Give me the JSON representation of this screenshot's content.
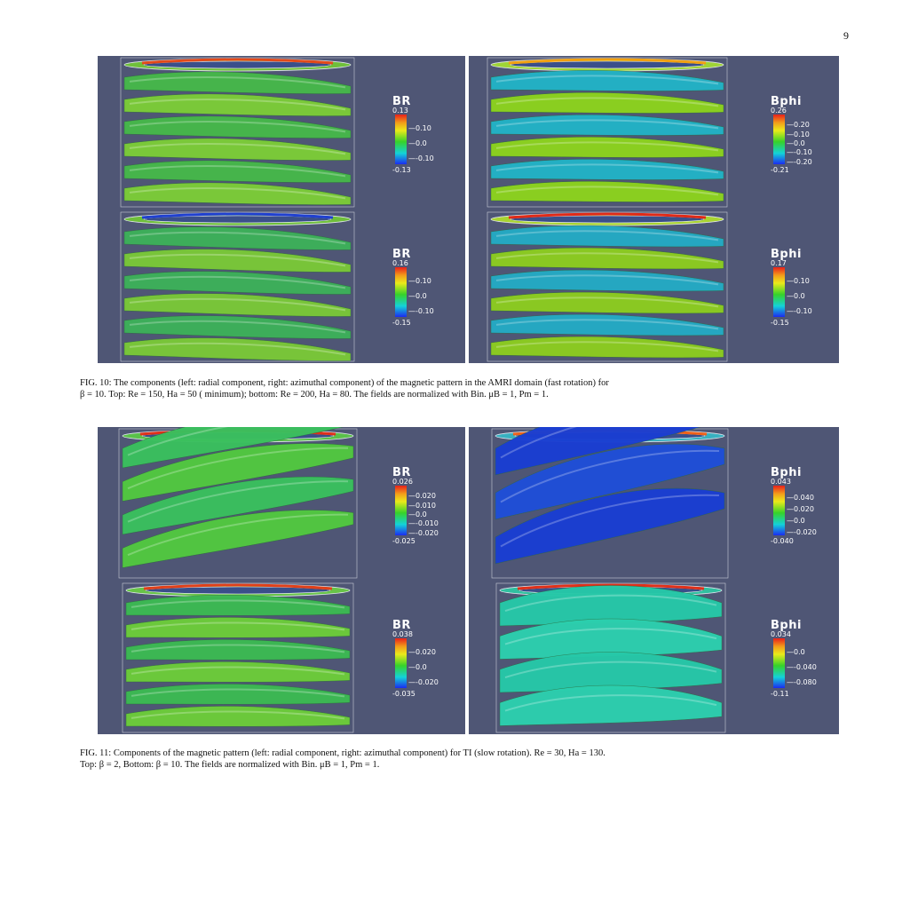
{
  "page_number": "9",
  "figures": [
    {
      "id": "fig10",
      "caption_lines": [
        "FIG. 10: The components (left: radial component, right: azimuthal component) of the magnetic pattern in the AMRI domain (fast rotation) for",
        "β = 10. Top: Re = 150,  Ha = 50 ( minimum); bottom: Re = 200, Ha = 80. The fields are normalized with Bin. μB = 1, Pm = 1."
      ],
      "panels": [
        {
          "colorbar_title": "BR",
          "max": "0.13",
          "ticks": [
            "0.10",
            "0.0",
            "-0.10"
          ],
          "min": "-0.13"
        },
        {
          "colorbar_title": "Bphi",
          "max": "0.26",
          "ticks": [
            "0.20",
            "0.10",
            "0.0",
            "-0.10",
            "-0.20"
          ],
          "min": "-0.21"
        },
        {
          "colorbar_title": "BR",
          "max": "0.16",
          "ticks": [
            "0.10",
            "0.0",
            "-0.10"
          ],
          "min": "-0.15"
        },
        {
          "colorbar_title": "Bphi",
          "max": "0.17",
          "ticks": [
            "0.10",
            "0.0",
            "-0.10"
          ],
          "min": "-0.15"
        }
      ]
    },
    {
      "id": "fig11",
      "caption_lines": [
        "FIG. 11: Components of the magnetic pattern (left: radial component, right: azimuthal component) for TI (slow rotation). Re = 30, Ha = 130.",
        "Top: β = 2, Bottom: β = 10. The fields are normalized with Bin. μB = 1, Pm = 1."
      ],
      "panels": [
        {
          "colorbar_title": "BR",
          "max": "0.026",
          "ticks": [
            "0.020",
            "0.010",
            "0.0",
            "-0.010",
            "-0.020"
          ],
          "min": "-0.025"
        },
        {
          "colorbar_title": "Bphi",
          "max": "0.043",
          "ticks": [
            "0.040",
            "0.020",
            "0.0",
            "-0.020"
          ],
          "min": "-0.040"
        },
        {
          "colorbar_title": "BR",
          "max": "0.038",
          "ticks": [
            "0.020",
            "0.0",
            "-0.020"
          ],
          "min": "-0.035"
        },
        {
          "colorbar_title": "Bphi",
          "max": "0.034",
          "ticks": [
            "0.0",
            "-0.040",
            "-0.080"
          ],
          "min": "-0.11"
        }
      ]
    }
  ],
  "colors": {
    "background_panel": "#4f5675",
    "helix_green": "#3fbf4a",
    "helix_yellowgreen": "#8fd22a",
    "helix_cyan": "#24b8c8",
    "helix_blue": "#1b3fd0",
    "helix_teal": "#26c8a8"
  }
}
